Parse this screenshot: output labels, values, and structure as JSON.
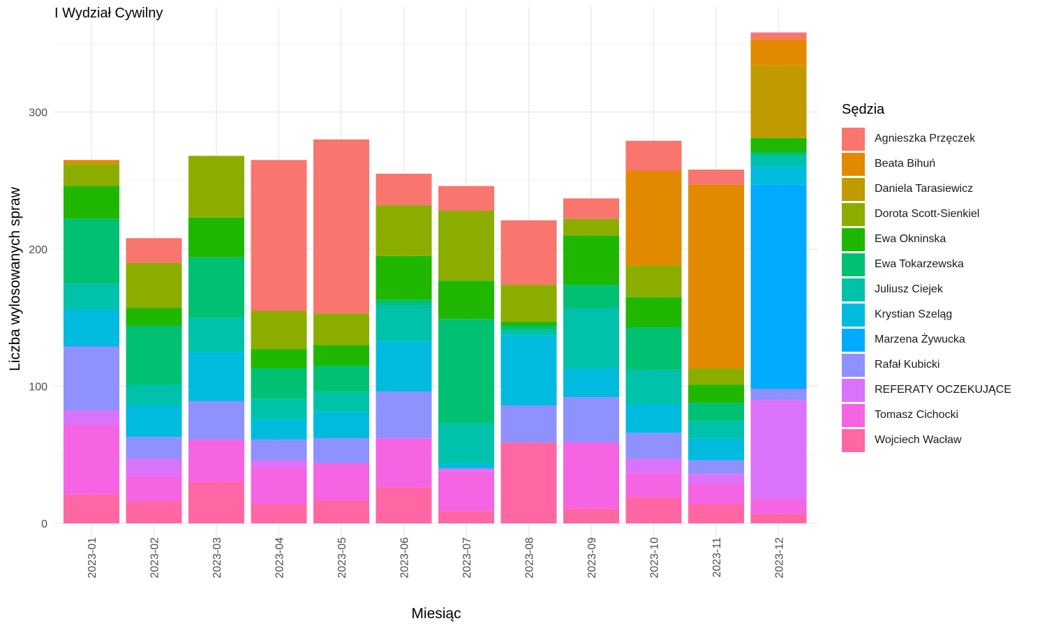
{
  "chart_data": {
    "type": "bar",
    "stacked": true,
    "title": "I Wydział Cywilny",
    "xlabel": "Miesiąc",
    "ylabel": "Liczba wylosowanych spraw",
    "ylim": [
      0,
      360
    ],
    "yticks": [
      0,
      100,
      200,
      300
    ],
    "grid": true,
    "legend_position": "right",
    "legend_title": "Sędzia",
    "categories": [
      "2023-01",
      "2023-02",
      "2023-03",
      "2023-04",
      "2023-05",
      "2023-06",
      "2023-07",
      "2023-08",
      "2023-09",
      "2023-10",
      "2023-11",
      "2023-12"
    ],
    "series": [
      {
        "name": "Wojciech Wacław",
        "color": "#FF67A4",
        "values": [
          21,
          16,
          30,
          14,
          17,
          26,
          9,
          59,
          11,
          19,
          14,
          7
        ]
      },
      {
        "name": "Tomasz Cichocki",
        "color": "#F564E3",
        "values": [
          51,
          19,
          31,
          27,
          27,
          36,
          29,
          0,
          48,
          18,
          15,
          11
        ]
      },
      {
        "name": "REFERATY OCZEKUJĄCE",
        "color": "#DB72FB",
        "values": [
          10,
          12,
          0,
          5,
          0,
          0,
          2,
          0,
          0,
          10,
          7,
          72
        ]
      },
      {
        "name": "Rafał Kubicki",
        "color": "#8F91FF",
        "values": [
          47,
          16,
          28,
          15,
          18,
          34,
          0,
          27,
          33,
          19,
          10,
          8
        ]
      },
      {
        "name": "Marzena Żywucka",
        "color": "#00ABFD",
        "values": [
          0,
          0,
          0,
          0,
          0,
          0,
          0,
          0,
          0,
          0,
          0,
          149
        ]
      },
      {
        "name": "Krystian Szeląg",
        "color": "#00BBDD",
        "values": [
          27,
          23,
          36,
          15,
          19,
          37,
          4,
          51,
          21,
          21,
          16,
          13
        ]
      },
      {
        "name": "Juliusz Ciejek",
        "color": "#00C1A9",
        "values": [
          19,
          15,
          25,
          15,
          15,
          26,
          29,
          4,
          44,
          25,
          13,
          8
        ]
      },
      {
        "name": "Ewa Tokarzewska",
        "color": "#00C072",
        "values": [
          47,
          43,
          44,
          22,
          19,
          4,
          76,
          3,
          17,
          31,
          13,
          3
        ]
      },
      {
        "name": "Ewa Okninska",
        "color": "#1FB700",
        "values": [
          24,
          13,
          29,
          14,
          15,
          32,
          28,
          3,
          36,
          22,
          13,
          10
        ]
      },
      {
        "name": "Dorota Scott-Sienkiel",
        "color": "#8BAD00",
        "values": [
          16,
          33,
          45,
          28,
          23,
          37,
          51,
          27,
          12,
          23,
          12,
          0
        ]
      },
      {
        "name": "Daniela Tarasiewicz",
        "color": "#C09B00",
        "values": [
          0,
          0,
          0,
          0,
          0,
          0,
          0,
          0,
          0,
          0,
          0,
          53
        ]
      },
      {
        "name": "Beata Bihuń",
        "color": "#E18A00",
        "values": [
          3,
          0,
          0,
          0,
          0,
          0,
          0,
          0,
          0,
          69,
          134,
          19
        ]
      },
      {
        "name": "Agnieszka Przęczek",
        "color": "#F8766D",
        "values": [
          0,
          18,
          0,
          110,
          127,
          23,
          18,
          47,
          15,
          22,
          11,
          5
        ]
      }
    ]
  }
}
